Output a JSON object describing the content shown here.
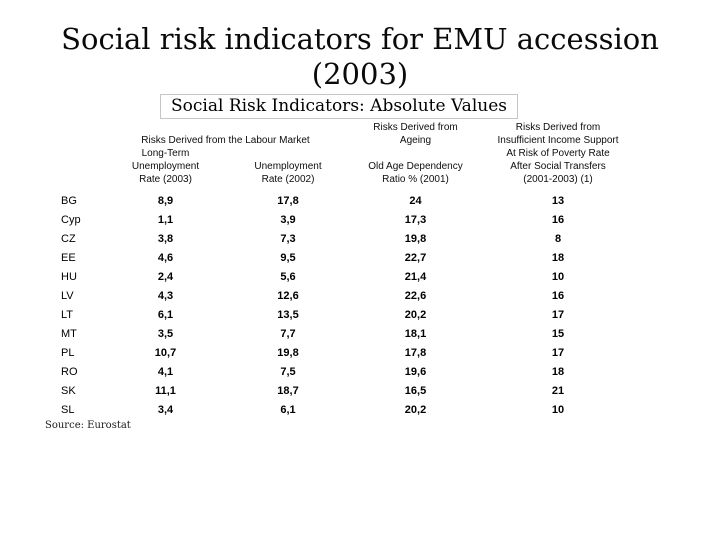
{
  "slide": {
    "title_line1": "Social risk indicators for EMU accession",
    "title_line2": "(2003)"
  },
  "table": {
    "title": "Social Risk Indicators: Absolute Values",
    "group_headers": {
      "labour_market": "Risks Derived from the Labour Market",
      "ageing": "Risks Derived from\nAgeing",
      "income_support": "Risks Derived from\nInsufficient Income Support"
    },
    "column_headers": {
      "long_term_unemployment": "Long-Term\nUnemployment\nRate (2003)",
      "unemployment": "Unemployment\nRate (2002)",
      "old_age_dependency": "Old Age Dependency\nRatio % (2001)",
      "poverty_rate": "At Risk of Poverty Rate\nAfter Social Transfers\n(2001-2003) (1)"
    },
    "rows": [
      {
        "country": "BG",
        "ltu_2003": "8,9",
        "u_2002": "17,8",
        "oadr_2001": "24",
        "poverty": "13"
      },
      {
        "country": "Cyp",
        "ltu_2003": "1,1",
        "u_2002": "3,9",
        "oadr_2001": "17,3",
        "poverty": "16"
      },
      {
        "country": "CZ",
        "ltu_2003": "3,8",
        "u_2002": "7,3",
        "oadr_2001": "19,8",
        "poverty": "8"
      },
      {
        "country": "EE",
        "ltu_2003": "4,6",
        "u_2002": "9,5",
        "oadr_2001": "22,7",
        "poverty": "18"
      },
      {
        "country": "HU",
        "ltu_2003": "2,4",
        "u_2002": "5,6",
        "oadr_2001": "21,4",
        "poverty": "10"
      },
      {
        "country": "LV",
        "ltu_2003": "4,3",
        "u_2002": "12,6",
        "oadr_2001": "22,6",
        "poverty": "16"
      },
      {
        "country": "LT",
        "ltu_2003": "6,1",
        "u_2002": "13,5",
        "oadr_2001": "20,2",
        "poverty": "17"
      },
      {
        "country": "MT",
        "ltu_2003": "3,5",
        "u_2002": "7,7",
        "oadr_2001": "18,1",
        "poverty": "15"
      },
      {
        "country": "PL",
        "ltu_2003": "10,7",
        "u_2002": "19,8",
        "oadr_2001": "17,8",
        "poverty": "17"
      },
      {
        "country": "RO",
        "ltu_2003": "4,1",
        "u_2002": "7,5",
        "oadr_2001": "19,6",
        "poverty": "18"
      },
      {
        "country": "SK",
        "ltu_2003": "11,1",
        "u_2002": "18,7",
        "oadr_2001": "16,5",
        "poverty": "21"
      },
      {
        "country": "SL",
        "ltu_2003": "3,4",
        "u_2002": "6,1",
        "oadr_2001": "20,2",
        "poverty": "10"
      }
    ],
    "source": "Source: Eurostat"
  }
}
